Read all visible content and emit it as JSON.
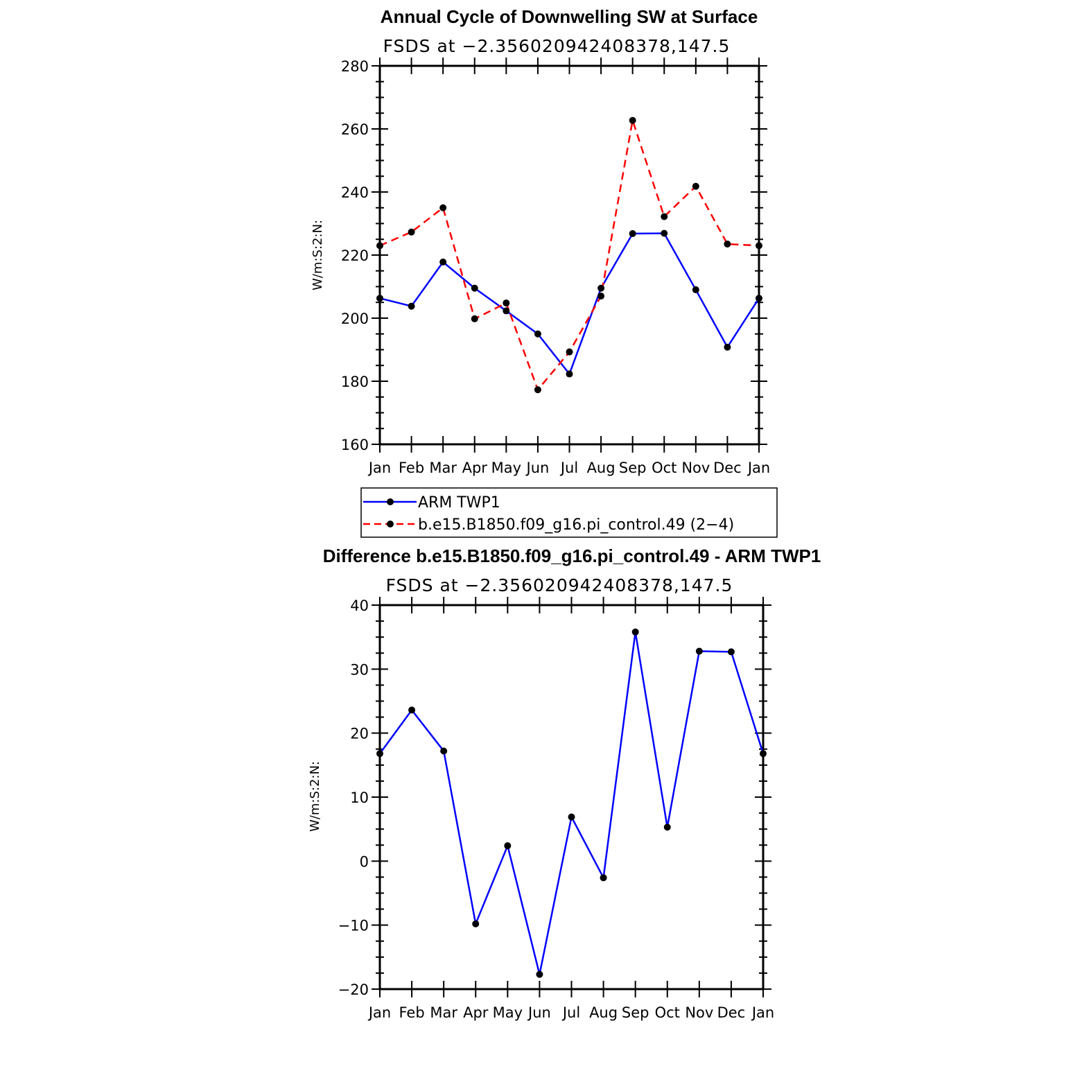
{
  "chart_data": [
    {
      "type": "line",
      "title": "Annual Cycle of Downwelling SW at Surface",
      "subtitle": "FSDS at −2.356020942408378,147.5",
      "ylabel": "W/m:S:2:N:",
      "xlabel": "",
      "ylim": [
        160,
        280
      ],
      "yticks": [
        160,
        180,
        200,
        220,
        240,
        260,
        280
      ],
      "categories": [
        "Jan",
        "Feb",
        "Mar",
        "Apr",
        "May",
        "Jun",
        "Jul",
        "Aug",
        "Sep",
        "Oct",
        "Nov",
        "Dec",
        "Jan"
      ],
      "series": [
        {
          "name": "ARM TWP1",
          "color": "#0000ff",
          "dash": "solid",
          "values": [
            206.3,
            203.8,
            217.8,
            209.5,
            202.3,
            195.0,
            182.3,
            209.5,
            226.8,
            226.9,
            209.0,
            190.8,
            206.3
          ]
        },
        {
          "name": "b.e15.B1850.f09_g16.pi_control.49 (2−4)",
          "color": "#ff0000",
          "dash": "dashed",
          "values": [
            223.0,
            227.3,
            235.0,
            199.8,
            204.8,
            177.3,
            189.3,
            207.0,
            262.7,
            232.2,
            241.8,
            223.5,
            223.0
          ]
        }
      ]
    },
    {
      "type": "line",
      "title": "Difference b.e15.B1850.f09_g16.pi_control.49 - ARM TWP1",
      "subtitle": "FSDS at −2.356020942408378,147.5",
      "ylabel": "W/m:S:2:N:",
      "xlabel": "",
      "ylim": [
        -20,
        40
      ],
      "yticks": [
        -20,
        -10,
        0,
        10,
        20,
        30,
        40
      ],
      "ytick_labels": [
        "−20",
        "−10",
        "0",
        "10",
        "20",
        "30",
        "40"
      ],
      "categories": [
        "Jan",
        "Feb",
        "Mar",
        "Apr",
        "May",
        "Jun",
        "Jul",
        "Aug",
        "Sep",
        "Oct",
        "Nov",
        "Dec",
        "Jan"
      ],
      "series": [
        {
          "color": "#0000ff",
          "dash": "solid",
          "values": [
            16.8,
            23.6,
            17.2,
            -9.8,
            2.4,
            -17.7,
            6.9,
            -2.6,
            35.8,
            5.3,
            32.8,
            32.7,
            16.8
          ]
        }
      ]
    }
  ]
}
